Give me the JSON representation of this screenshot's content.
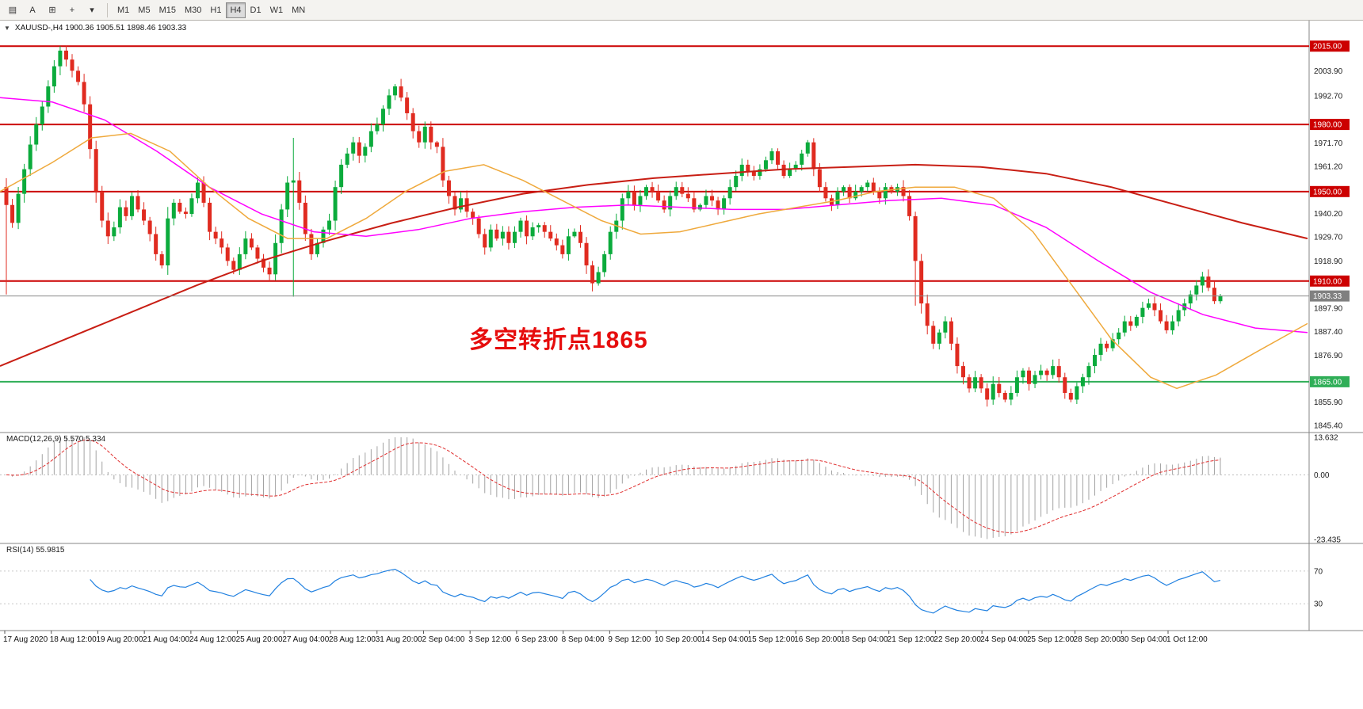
{
  "toolbar": {
    "icons": [
      {
        "name": "chart-list-icon",
        "glyph": "▤"
      },
      {
        "name": "text-label-icon",
        "glyph": "A"
      },
      {
        "name": "text-frame-icon",
        "glyph": "⊞"
      },
      {
        "name": "crosshair-icon",
        "glyph": "+"
      },
      {
        "name": "draw-tools-dropdown-icon",
        "glyph": "▾"
      }
    ],
    "timeframes": [
      "M1",
      "M5",
      "M15",
      "M30",
      "H1",
      "H4",
      "D1",
      "W1",
      "MN"
    ],
    "active_timeframe": "H4"
  },
  "chart": {
    "expand_icon_glyph": "▼",
    "symbol_line": "XAUUSD-,H4  1900.36 1905.51 1898.46 1903.33",
    "annotation": {
      "text": "多空转折点1865",
      "color": "#e60d0d"
    },
    "current_price": 1903.33,
    "current_price_label": "1903.33",
    "levels": [
      {
        "value": 2015.0,
        "label": "2015.00",
        "color": "#cc0000",
        "type": "resistance"
      },
      {
        "value": 1980.0,
        "label": "1980.00",
        "color": "#cc0000",
        "type": "resistance"
      },
      {
        "value": 1950.0,
        "label": "1950.00",
        "color": "#cc0000",
        "type": "resistance"
      },
      {
        "value": 1910.0,
        "label": "1910.00",
        "color": "#cc0000",
        "type": "resistance"
      },
      {
        "value": 1865.0,
        "label": "1865.00",
        "color": "#2fae57",
        "type": "support"
      }
    ],
    "axis_labels": [
      {
        "value": 2003.9,
        "label": "2003.90"
      },
      {
        "value": 1992.7,
        "label": "1992.70"
      },
      {
        "value": 1971.7,
        "label": "1971.70"
      },
      {
        "value": 1961.2,
        "label": "1961.20"
      },
      {
        "value": 1940.2,
        "label": "1940.20"
      },
      {
        "value": 1929.7,
        "label": "1929.70"
      },
      {
        "value": 1918.9,
        "label": "1918.90"
      },
      {
        "value": 1897.9,
        "label": "1897.90"
      },
      {
        "value": 1887.4,
        "label": "1887.40"
      },
      {
        "value": 1876.9,
        "label": "1876.90"
      },
      {
        "value": 1855.9,
        "label": "1855.90"
      },
      {
        "value": 1845.4,
        "label": "1845.40"
      }
    ]
  },
  "chart_data": {
    "type": "candlestick",
    "symbol": "XAUUSD",
    "timeframe": "H4",
    "ylim": [
      1843,
      2025
    ],
    "first_open": 1952,
    "closes": [
      1944,
      1936,
      1949,
      1960,
      1971,
      1980,
      1988,
      1997,
      2006,
      2013,
      2009,
      2004,
      1999,
      1989,
      1969,
      1950,
      1937,
      1930,
      1934,
      1943,
      1939,
      1948,
      1942,
      1937,
      1931,
      1922,
      1917,
      1938,
      1945,
      1941,
      1940,
      1947,
      1954,
      1945,
      1932,
      1929,
      1925,
      1919,
      1915,
      1922,
      1929,
      1925,
      1920,
      1916,
      1913,
      1927,
      1942,
      1954,
      1955,
      1945,
      1931,
      1922,
      1927,
      1933,
      1937,
      1952,
      1962,
      1967,
      1972,
      1966,
      1970,
      1977,
      1980,
      1987,
      1993,
      1997,
      1992,
      1985,
      1977,
      1972,
      1979,
      1972,
      1970,
      1955,
      1948,
      1942,
      1947,
      1941,
      1938,
      1931,
      1925,
      1933,
      1929,
      1932,
      1927,
      1932,
      1937,
      1930,
      1934,
      1935,
      1932,
      1929,
      1926,
      1922,
      1930,
      1932,
      1927,
      1917,
      1909,
      1914,
      1922,
      1932,
      1937,
      1947,
      1950,
      1944,
      1948,
      1952,
      1950,
      1946,
      1942,
      1948,
      1952,
      1949,
      1947,
      1942,
      1944,
      1948,
      1946,
      1942,
      1947,
      1952,
      1957,
      1962,
      1959,
      1957,
      1960,
      1964,
      1968,
      1962,
      1957,
      1960,
      1962,
      1967,
      1972,
      1960,
      1952,
      1947,
      1944,
      1950,
      1952,
      1947,
      1950,
      1952,
      1954,
      1950,
      1947,
      1952,
      1950,
      1952,
      1948,
      1939,
      1919,
      1900,
      1890,
      1882,
      1887,
      1892,
      1882,
      1872,
      1867,
      1862,
      1867,
      1862,
      1857,
      1864,
      1860,
      1857,
      1860,
      1867,
      1870,
      1864,
      1868,
      1870,
      1868,
      1872,
      1867,
      1860,
      1857,
      1863,
      1867,
      1872,
      1877,
      1882,
      1880,
      1884,
      1887,
      1892,
      1890,
      1894,
      1898,
      1900,
      1897,
      1892,
      1888,
      1892,
      1897,
      1900,
      1904,
      1908,
      1912,
      1907,
      1901,
      1903.33
    ],
    "wick_overrides": {
      "0": [
        1956,
        1904
      ],
      "9": [
        2015,
        2002
      ],
      "48": [
        1974,
        1903
      ],
      "152": [
        1941,
        1899
      ]
    },
    "colors": {
      "up": "#0bab3c",
      "down": "#e02b20",
      "ma_fast": "#efa93c",
      "ma_mid": "#ff00ff",
      "ma_slow": "#c81e14",
      "macd_hist": "#a3a3a3",
      "macd_signal": "#e03030",
      "rsi_line": "#2080e0"
    },
    "x_labels": [
      "17 Aug 2020",
      "18 Aug 12:00",
      "19 Aug 20:00",
      "21 Aug 04:00",
      "24 Aug 12:00",
      "25 Aug 20:00",
      "27 Aug 04:00",
      "28 Aug 12:00",
      "31 Aug 20:00",
      "2 Sep 04:00",
      "3 Sep 12:00",
      "6 Sep 23:00",
      "8 Sep 04:00",
      "9 Sep 12:00",
      "10 Sep 20:00",
      "14 Sep 04:00",
      "15 Sep 12:00",
      "16 Sep 20:00",
      "18 Sep 04:00",
      "21 Sep 12:00",
      "22 Sep 20:00",
      "24 Sep 04:00",
      "25 Sep 12:00",
      "28 Sep 20:00",
      "30 Sep 04:00",
      "1 Oct 12:00"
    ],
    "indicators": {
      "ma_slow": {
        "anchors": [
          [
            0,
            1872
          ],
          [
            0.05,
            1884
          ],
          [
            0.1,
            1896
          ],
          [
            0.15,
            1908
          ],
          [
            0.2,
            1919
          ],
          [
            0.25,
            1928
          ],
          [
            0.3,
            1936
          ],
          [
            0.35,
            1943
          ],
          [
            0.4,
            1949
          ],
          [
            0.45,
            1953
          ],
          [
            0.5,
            1956
          ],
          [
            0.55,
            1958
          ],
          [
            0.6,
            1960
          ],
          [
            0.65,
            1961
          ],
          [
            0.7,
            1962
          ],
          [
            0.75,
            1961
          ],
          [
            0.8,
            1958
          ],
          [
            0.85,
            1952
          ],
          [
            0.9,
            1944
          ],
          [
            0.95,
            1936
          ],
          [
            1,
            1929
          ]
        ]
      },
      "ma_mid": {
        "anchors": [
          [
            0,
            1992
          ],
          [
            0.04,
            1990
          ],
          [
            0.08,
            1982
          ],
          [
            0.12,
            1968
          ],
          [
            0.16,
            1952
          ],
          [
            0.2,
            1940
          ],
          [
            0.24,
            1932
          ],
          [
            0.28,
            1930
          ],
          [
            0.32,
            1933
          ],
          [
            0.36,
            1938
          ],
          [
            0.4,
            1941
          ],
          [
            0.44,
            1943
          ],
          [
            0.48,
            1944
          ],
          [
            0.52,
            1943
          ],
          [
            0.56,
            1942
          ],
          [
            0.6,
            1942
          ],
          [
            0.64,
            1944
          ],
          [
            0.68,
            1946
          ],
          [
            0.72,
            1947
          ],
          [
            0.76,
            1944
          ],
          [
            0.8,
            1934
          ],
          [
            0.84,
            1919
          ],
          [
            0.88,
            1905
          ],
          [
            0.92,
            1895
          ],
          [
            0.96,
            1889
          ],
          [
            1,
            1887
          ]
        ]
      },
      "ma_fast": {
        "anchors": [
          [
            0,
            1950
          ],
          [
            0.04,
            1963
          ],
          [
            0.07,
            1974
          ],
          [
            0.1,
            1976
          ],
          [
            0.13,
            1968
          ],
          [
            0.16,
            1952
          ],
          [
            0.19,
            1938
          ],
          [
            0.22,
            1929
          ],
          [
            0.25,
            1929
          ],
          [
            0.28,
            1938
          ],
          [
            0.31,
            1950
          ],
          [
            0.34,
            1959
          ],
          [
            0.37,
            1962
          ],
          [
            0.4,
            1955
          ],
          [
            0.43,
            1946
          ],
          [
            0.46,
            1937
          ],
          [
            0.49,
            1931
          ],
          [
            0.52,
            1932
          ],
          [
            0.55,
            1936
          ],
          [
            0.58,
            1940
          ],
          [
            0.61,
            1943
          ],
          [
            0.64,
            1946
          ],
          [
            0.67,
            1950
          ],
          [
            0.7,
            1952
          ],
          [
            0.73,
            1952
          ],
          [
            0.76,
            1947
          ],
          [
            0.79,
            1932
          ],
          [
            0.82,
            1908
          ],
          [
            0.85,
            1884
          ],
          [
            0.88,
            1867
          ],
          [
            0.9,
            1862
          ],
          [
            0.93,
            1868
          ],
          [
            0.96,
            1878
          ],
          [
            1,
            1891
          ]
        ]
      }
    },
    "macd": {
      "label": "MACD(12,26,9) 5.570 5.334",
      "params": [
        12,
        26,
        9
      ],
      "axis": [
        "13.632",
        "0.00",
        "-23.435"
      ],
      "axis_values": [
        13.632,
        0,
        -23.435
      ]
    },
    "rsi": {
      "label": "RSI(14) 55.9815",
      "period": 14,
      "axis": [
        "70",
        "30"
      ],
      "levels": [
        70,
        30
      ],
      "current": 55.9815
    }
  }
}
